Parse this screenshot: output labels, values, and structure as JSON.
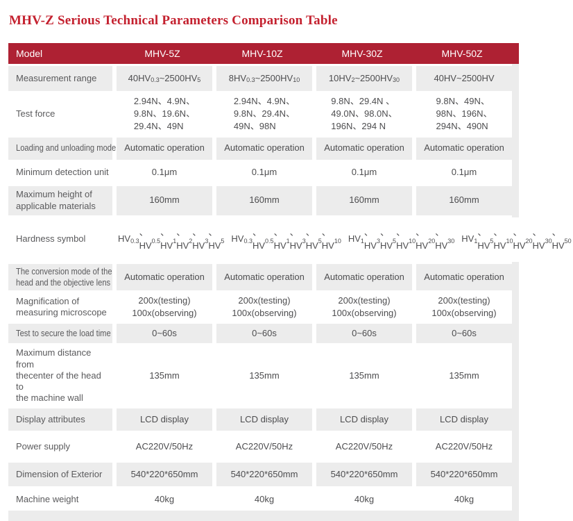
{
  "title": "MHV-Z Serious Technical Parameters Comparison Table",
  "colors": {
    "title_red": "#c4212f",
    "header_red": "#ae2133",
    "row_gray": "#ececec",
    "text_gray": "#5a5a5c"
  },
  "table": {
    "header": [
      "Model",
      "MHV-5Z",
      "MHV-10Z",
      "MHV-30Z",
      "MHV-50Z"
    ],
    "rows": [
      {
        "label": "Measurement range",
        "values": [
          "40HV_{0.3}~2500HV_{5}",
          "8HV_{0.3}~2500HV_{10}",
          "10HV_{2}~2500HV_{30}",
          "40HV~2500HV"
        ]
      },
      {
        "label": "Test force",
        "values": [
          [
            "2.94N、4.9N、",
            "9.8N、19.6N、",
            "29.4N、49N"
          ],
          [
            "2.94N、4.9N、",
            "9.8N、29.4N、",
            "49N、98N"
          ],
          [
            "9.8N、29.4N 、",
            "49.0N、98.0N、",
            "196N、294 N"
          ],
          [
            "9.8N、49N、",
            "98N、196N、",
            "294N、490N"
          ]
        ]
      },
      {
        "label": "Loading and unloading mode",
        "values": [
          "Automatic operation",
          "Automatic operation",
          "Automatic operation",
          "Automatic operation"
        ]
      },
      {
        "label": "Minimum detection unit",
        "values": [
          "0.1μm",
          "0.1μm",
          "0.1μm",
          "0.1μm"
        ]
      },
      {
        "label": [
          "Maximum height of",
          "applicable materials"
        ],
        "values": [
          "160mm",
          "160mm",
          "160mm",
          "160mm"
        ]
      },
      {
        "label": "Hardness symbol",
        "values": [
          [
            "HV_{0.3}、HV_{0.5}、",
            "HV_{1}、HV_{2}、",
            "HV_{3}、HV_{5}"
          ],
          [
            "HV_{0.3}、HV_{0.5}、",
            "HV_{1}、HV_{3}、",
            "HV_{5}、HV_{10}"
          ],
          [
            "HV_{1}、HV_{3}、",
            "HV_{5}、HV_{10}、",
            "HV_{20}、HV_{30}"
          ],
          [
            "HV_{1}、HV_{5}、",
            "HV_{10}、HV_{20}、",
            "HV_{30}、HV_{50}"
          ]
        ]
      },
      {
        "label": [
          "The conversion mode of the",
          "head and the objective lens"
        ],
        "values": [
          "Automatic operation",
          "Automatic operation",
          "Automatic operation",
          "Automatic operation"
        ]
      },
      {
        "label": [
          "Magnification of",
          "measuring microscope"
        ],
        "values": [
          [
            "200x(testing)",
            "100x(observing)"
          ],
          [
            "200x(testing)",
            "100x(observing)"
          ],
          [
            "200x(testing)",
            "100x(observing)"
          ],
          [
            "200x(testing)",
            "100x(observing)"
          ]
        ]
      },
      {
        "label": "Test to secure the load time",
        "values": [
          "0~60s",
          "0~60s",
          "0~60s",
          "0~60s"
        ]
      },
      {
        "label": [
          "Maximum distance from",
          "thecenter of the head to",
          "the machine wall"
        ],
        "values": [
          "135mm",
          "135mm",
          "135mm",
          "135mm"
        ]
      },
      {
        "label": "Display attributes",
        "values": [
          "LCD display",
          "LCD display",
          "LCD display",
          "LCD display"
        ]
      },
      {
        "label": "Power supply",
        "values": [
          "AC220V/50Hz",
          "AC220V/50Hz",
          "AC220V/50Hz",
          "AC220V/50Hz"
        ]
      },
      {
        "label": "Dimension of Exterior",
        "values": [
          "540*220*650mm",
          "540*220*650mm",
          "540*220*650mm",
          "540*220*650mm"
        ]
      },
      {
        "label": "Machine weight",
        "values": [
          "40kg",
          "40kg",
          "40kg",
          "40kg"
        ]
      }
    ]
  }
}
